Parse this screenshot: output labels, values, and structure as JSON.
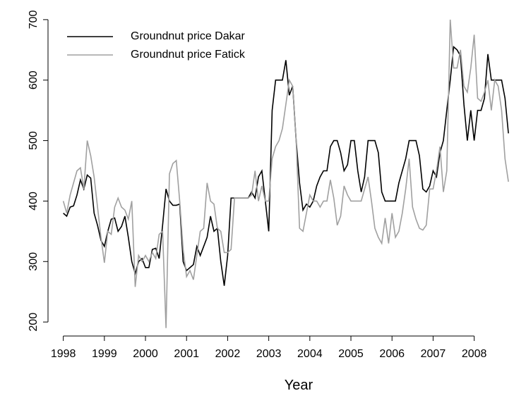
{
  "chart_data": {
    "type": "line",
    "x_label": "Year",
    "x": [
      1998,
      1998.083,
      1998.167,
      1998.25,
      1998.333,
      1998.417,
      1998.5,
      1998.583,
      1998.667,
      1998.75,
      1998.833,
      1998.917,
      1999,
      1999.083,
      1999.167,
      1999.25,
      1999.333,
      1999.417,
      1999.5,
      1999.583,
      1999.667,
      1999.75,
      1999.833,
      1999.917,
      2000,
      2000.083,
      2000.167,
      2000.25,
      2000.333,
      2000.417,
      2000.5,
      2000.583,
      2000.667,
      2000.75,
      2000.833,
      2000.917,
      2001,
      2001.083,
      2001.167,
      2001.25,
      2001.333,
      2001.417,
      2001.5,
      2001.583,
      2001.667,
      2001.75,
      2001.833,
      2001.917,
      2002,
      2002.083,
      2002.167,
      2002.25,
      2002.333,
      2002.417,
      2002.5,
      2002.583,
      2002.667,
      2002.75,
      2002.833,
      2002.917,
      2003,
      2003.083,
      2003.167,
      2003.25,
      2003.333,
      2003.417,
      2003.5,
      2003.583,
      2003.667,
      2003.75,
      2003.833,
      2003.917,
      2004,
      2004.083,
      2004.167,
      2004.25,
      2004.333,
      2004.417,
      2004.5,
      2004.583,
      2004.667,
      2004.75,
      2004.833,
      2004.917,
      2005,
      2005.083,
      2005.167,
      2005.25,
      2005.333,
      2005.417,
      2005.5,
      2005.583,
      2005.667,
      2005.75,
      2005.833,
      2005.917,
      2006,
      2006.083,
      2006.167,
      2006.25,
      2006.333,
      2006.417,
      2006.5,
      2006.583,
      2006.667,
      2006.75,
      2006.833,
      2006.917,
      2007,
      2007.083,
      2007.167,
      2007.25,
      2007.333,
      2007.417,
      2007.5,
      2007.583,
      2007.667,
      2007.75,
      2007.833,
      2007.917,
      2008,
      2008.083,
      2008.167,
      2008.25,
      2008.333,
      2008.417,
      2008.5,
      2008.583,
      2008.667,
      2008.75,
      2008.833
    ],
    "series": [
      {
        "name": "Groundnut price Dakar",
        "color": "#000000",
        "values": [
          380,
          375,
          390,
          392,
          410,
          435,
          420,
          443,
          438,
          380,
          360,
          335,
          325,
          350,
          370,
          372,
          350,
          358,
          375,
          340,
          300,
          280,
          300,
          305,
          290,
          290,
          320,
          322,
          305,
          360,
          420,
          400,
          393,
          393,
          395,
          300,
          285,
          290,
          295,
          325,
          310,
          325,
          340,
          375,
          350,
          355,
          300,
          260,
          310,
          405,
          405,
          405,
          405,
          405,
          405,
          415,
          405,
          440,
          450,
          400,
          350,
          550,
          600,
          600,
          600,
          633,
          575,
          590,
          500,
          430,
          385,
          395,
          390,
          400,
          425,
          440,
          450,
          450,
          490,
          500,
          500,
          480,
          450,
          460,
          500,
          500,
          450,
          415,
          440,
          500,
          500,
          500,
          480,
          415,
          400,
          400,
          400,
          400,
          430,
          450,
          470,
          500,
          500,
          500,
          475,
          420,
          415,
          425,
          450,
          440,
          480,
          500,
          550,
          600,
          655,
          650,
          640,
          560,
          500,
          550,
          500,
          550,
          550,
          570,
          643,
          600,
          600,
          600,
          600,
          570,
          512
        ]
      },
      {
        "name": "Groundnut price Fatick",
        "color": "#a0a0a0",
        "values": [
          400,
          380,
          410,
          430,
          450,
          455,
          420,
          500,
          475,
          440,
          390,
          340,
          298,
          350,
          345,
          390,
          405,
          390,
          385,
          370,
          400,
          258,
          310,
          300,
          310,
          300,
          315,
          305,
          345,
          350,
          190,
          445,
          462,
          467,
          400,
          320,
          275,
          285,
          270,
          310,
          350,
          355,
          430,
          400,
          395,
          355,
          350,
          315,
          315,
          320,
          405,
          405,
          405,
          405,
          405,
          410,
          450,
          400,
          425,
          400,
          400,
          470,
          490,
          500,
          520,
          560,
          600,
          590,
          500,
          355,
          350,
          380,
          410,
          400,
          400,
          390,
          400,
          400,
          435,
          405,
          360,
          375,
          425,
          410,
          400,
          400,
          400,
          400,
          420,
          440,
          400,
          355,
          340,
          330,
          372,
          330,
          380,
          340,
          350,
          380,
          420,
          470,
          390,
          370,
          355,
          352,
          360,
          420,
          420,
          450,
          490,
          415,
          450,
          700,
          620,
          620,
          650,
          590,
          580,
          620,
          675,
          570,
          565,
          580,
          600,
          550,
          600,
          590,
          550,
          470,
          432
        ]
      }
    ],
    "xlim": [
      1997.8,
      2008.9
    ],
    "xticks": [
      1998,
      1999,
      2000,
      2001,
      2002,
      2003,
      2004,
      2005,
      2006,
      2007,
      2008
    ],
    "ylim": [
      185,
      715
    ],
    "yticks": [
      200,
      300,
      400,
      500,
      600,
      700
    ],
    "legend": "top-left"
  }
}
